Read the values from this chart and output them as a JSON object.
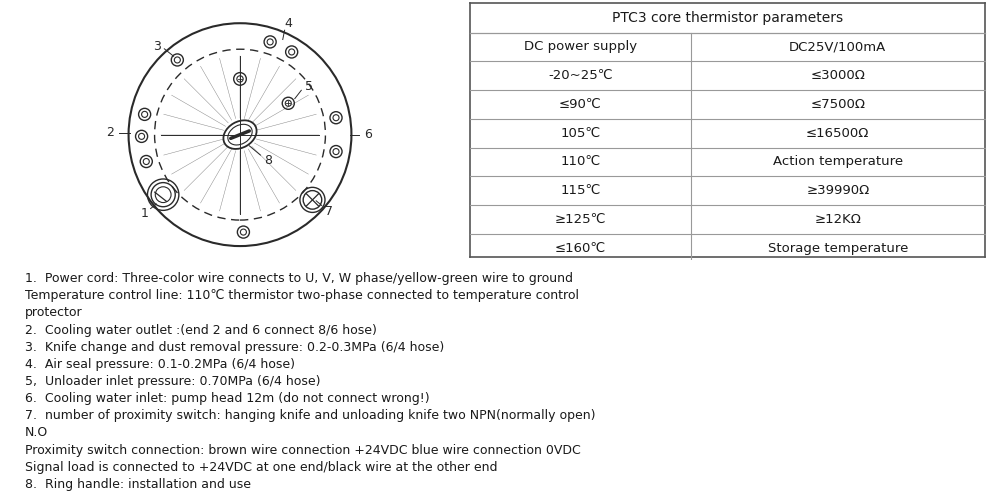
{
  "table_title": "PTC3 core thermistor parameters",
  "table_col1": [
    "DC power supply",
    "-20~25℃",
    "≤90℃",
    "105℃",
    "110℃",
    "115℃",
    "≥125℃",
    "≤160℃"
  ],
  "table_col2": [
    "DC25V/100mA",
    "≤3000Ω",
    "≤7500Ω",
    "≤16500Ω",
    "Action temperature",
    "≥39990Ω",
    "≥12KΩ",
    "Storage temperature"
  ],
  "text_lines": [
    "1.  Power cord: Three-color wire connects to U, V, W phase/yellow-green wire to ground",
    "Temperature control line: 110℃ thermistor two-phase connected to temperature control",
    "protector",
    "2.  Cooling water outlet :(end 2 and 6 connect 8/6 hose)",
    "3.  Knife change and dust removal pressure: 0.2-0.3MPa (6/4 hose)",
    "4.  Air seal pressure: 0.1-0.2MPa (6/4 hose)",
    "5,  Unloader inlet pressure: 0.70MPa (6/4 hose)",
    "6.  Cooling water inlet: pump head 12m (do not connect wrong!)",
    "7.  number of proximity switch: hanging knife and unloading knife two NPN(normally open)",
    "N.O",
    "Proximity switch connection: brown wire connection +24VDC blue wire connection 0VDC",
    "Signal load is connected to +24VDC at one end/black wire at the other end",
    "8.  Ring handle: installation and use"
  ],
  "bg_color": "#ffffff",
  "text_color": "#1a1a1a",
  "line_color": "#2a2a2a",
  "table_line_color": "#999999",
  "font_size_text": 9.0,
  "font_size_table": 9.5
}
